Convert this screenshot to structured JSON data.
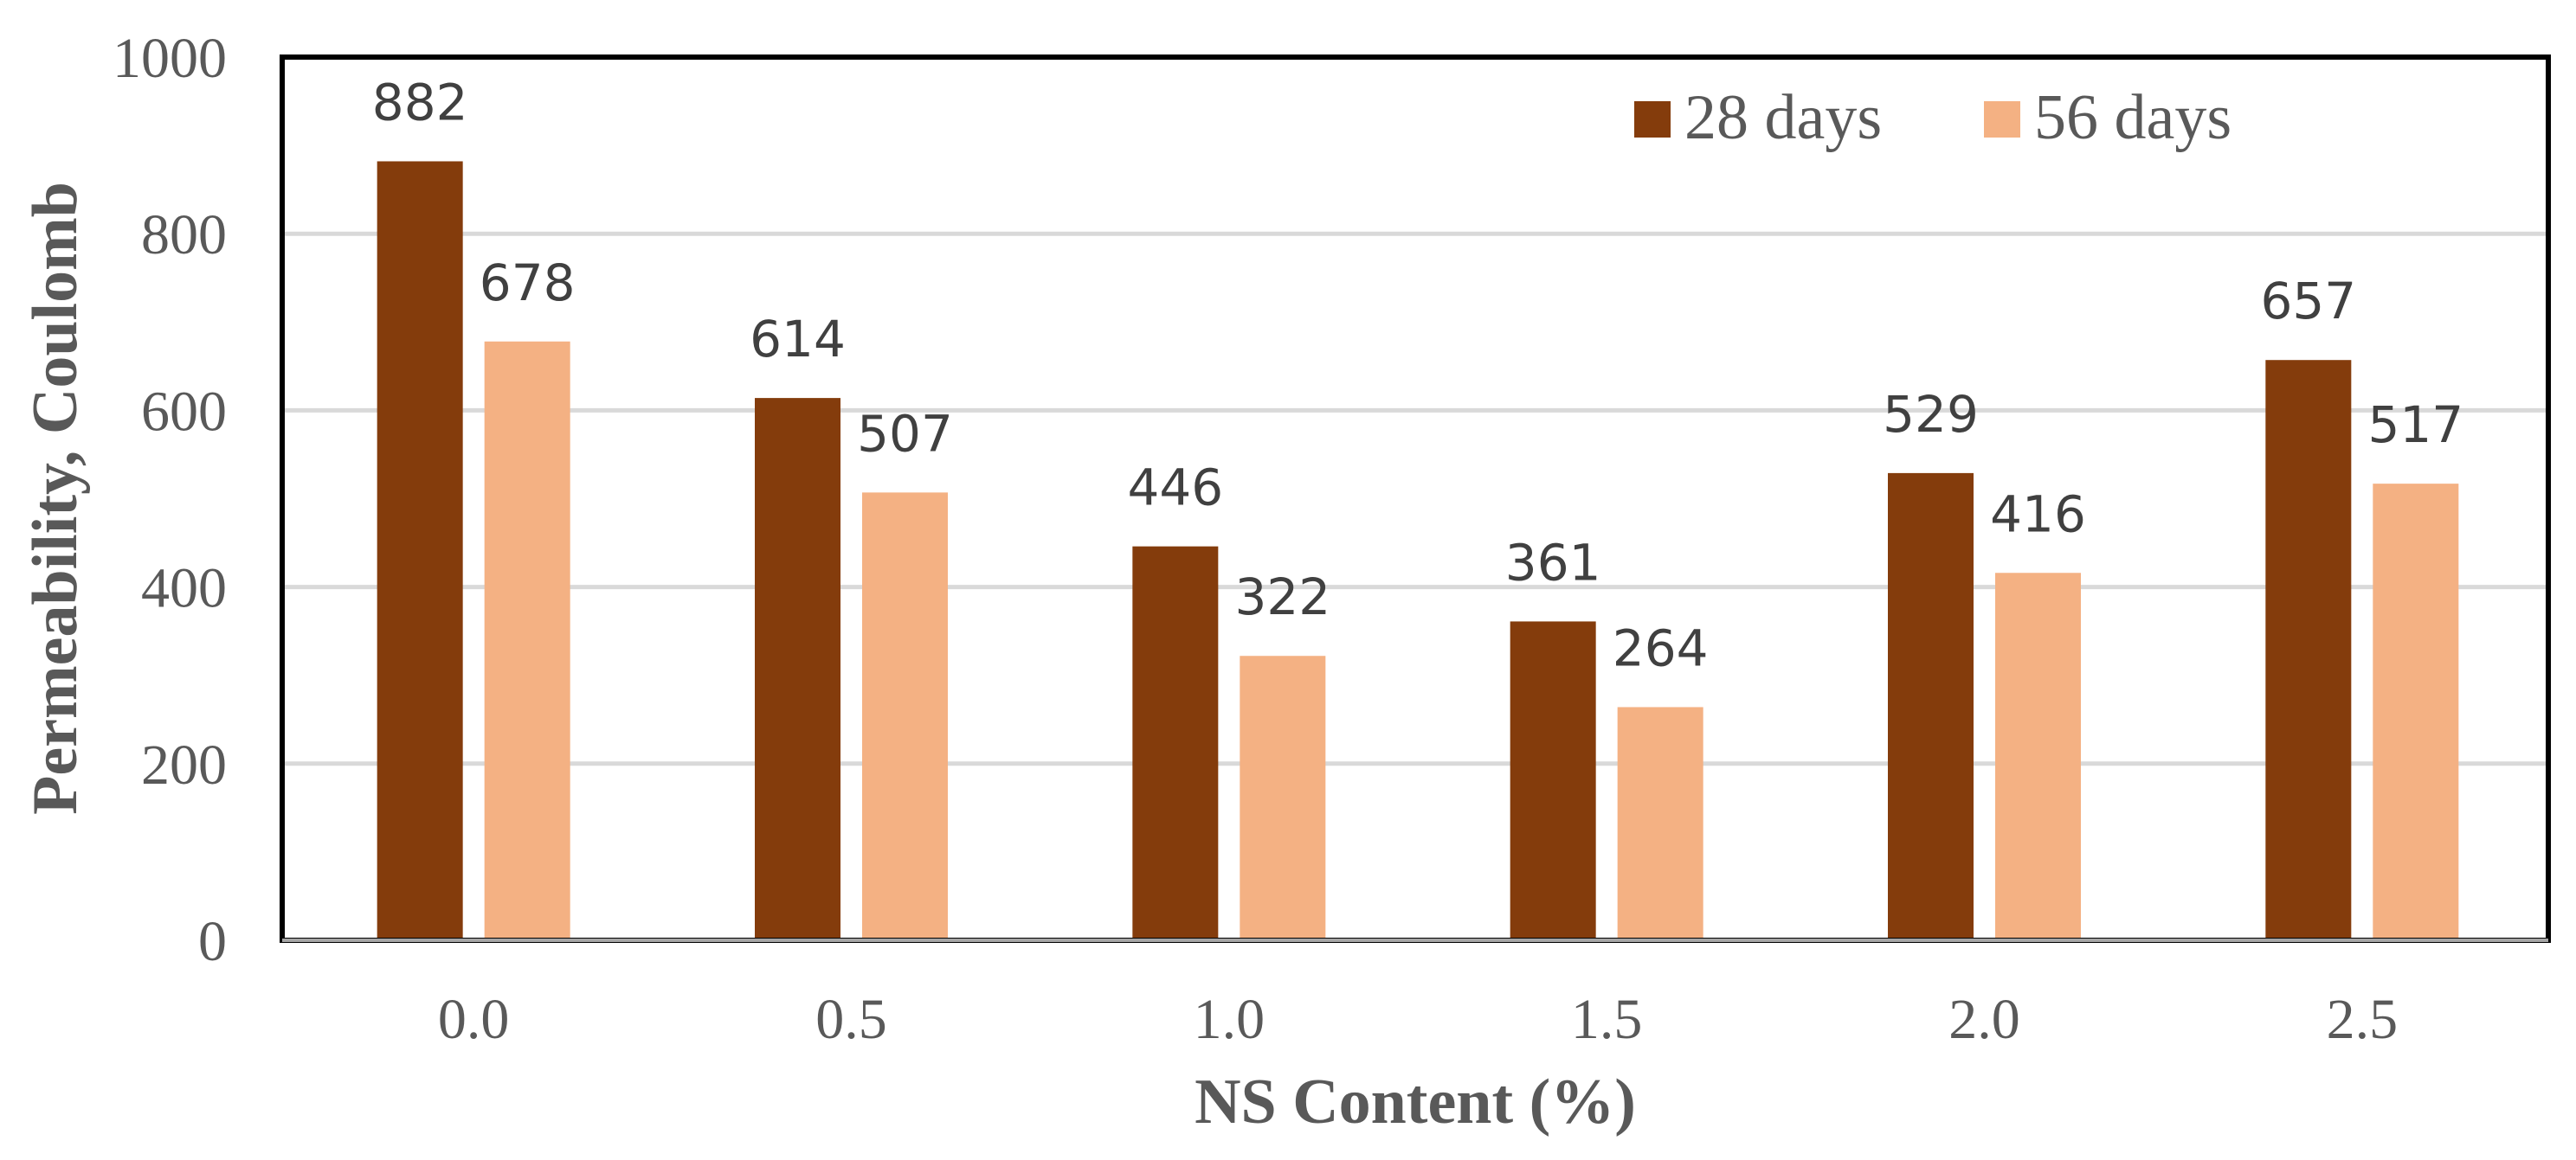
{
  "chart_data": {
    "type": "bar",
    "title": "",
    "xlabel": "NS Content (%)",
    "ylabel": "Permeability, Coulomb",
    "categories": [
      "0.0",
      "0.5",
      "1.0",
      "1.5",
      "2.0",
      "2.5"
    ],
    "series": [
      {
        "name": "28 days",
        "values": [
          882,
          614,
          446,
          361,
          529,
          657
        ],
        "color": "#843C0C"
      },
      {
        "name": "56 days",
        "values": [
          678,
          507,
          322,
          264,
          416,
          517
        ],
        "color": "#F4B183"
      }
    ],
    "ylim": [
      0,
      1000
    ],
    "yticks": [
      "0",
      "200",
      "400",
      "600",
      "800",
      "1000"
    ],
    "grid": true,
    "legend_position": "top-right",
    "data_labels": true
  }
}
